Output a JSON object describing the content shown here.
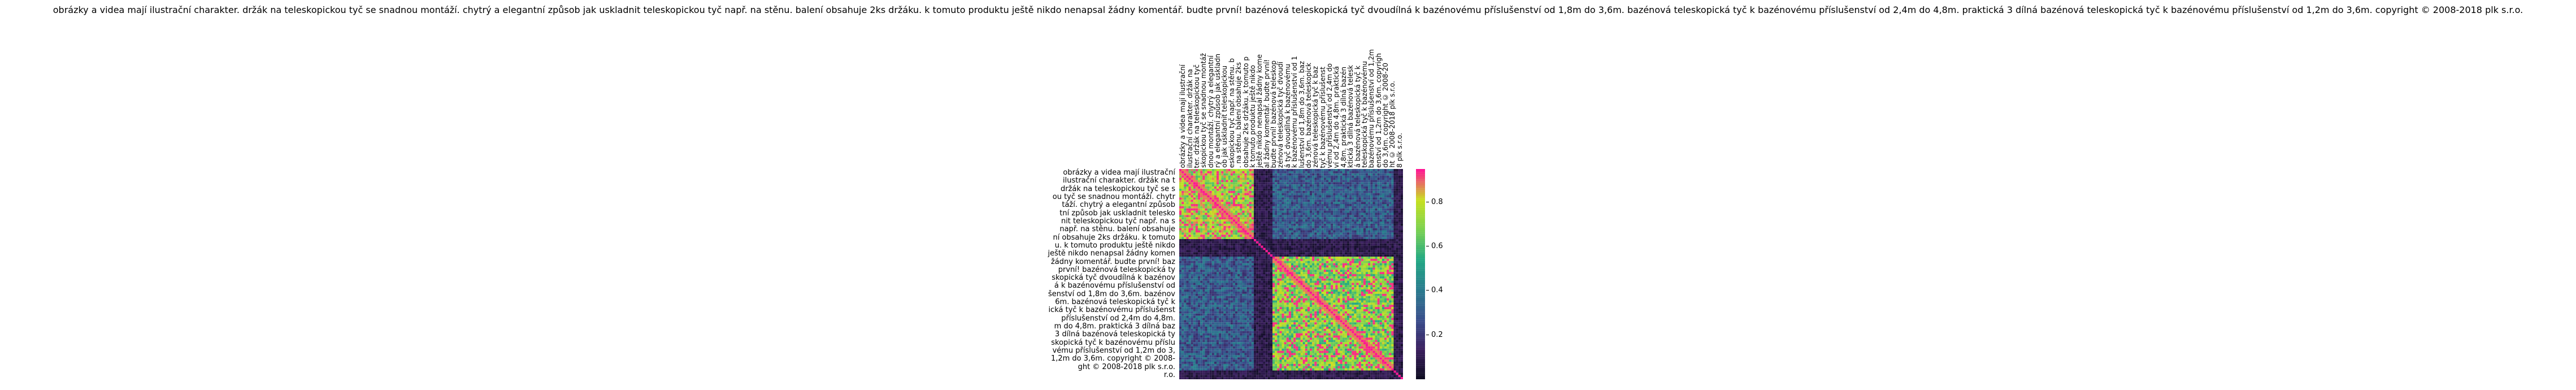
{
  "chart_data": {
    "type": "heatmap",
    "title": "obrázky a videa mají ilustrační charakter. držák na teleskopickou tyč se snadnou montáží. chytrý a elegantní způsob jak uskladnit teleskopickou tyč např. na stěnu. balení obsahuje 2ks držáku. k tomuto produktu ještě nikdo nenapsal žádny komentář. budte první! bazénová teleskopická tyč dvoudílná k bazénovému příslušenství od 1,8m do 3,6m. bazénová teleskopická tyč k bazénovému příslušenství od 2,4m do 4,8m. praktická 3 dílná bazénová teleskopická tyč k bazénovému příslušenství od 1,2m do 3,6m. copyright © 2008-2018 plk s.r.o.",
    "row_labels": [
      "obrázky a videa mají ilustrační",
      "ilustrační charakter. držák na t",
      "držák na teleskopickou tyč se s",
      "ou tyč se snadnou montáží. chytr",
      "táží. chytrý a elegantní způsob",
      "tní způsob jak uskladnit telesko",
      "nit teleskopickou tyč např. na s",
      "např. na stěnu. balení obsahuje",
      "ní obsahuje 2ks držáku. k tomuto",
      "u. k tomuto produktu ještě nikdo",
      "ještě nikdo nenapsal žádny komen",
      "žádny komentář. budte první! baz",
      "první! bazénová teleskopická ty",
      "skopická tyč dvoudílná k bazénov",
      "á k bazénovému příslušenství od",
      "šenství od 1,8m do 3,6m. bazénov",
      "6m. bazénová teleskopická tyč k",
      "ická tyč k bazénovému příslušenst",
      "příslušenství od 2,4m do 4,8m.",
      "m do 4,8m. praktická 3 dílná baz",
      "3 dílná bazénová teleskopická ty",
      "skopická tyč k bazénovému příslu",
      "vému příslušenství od 1,2m do 3,",
      "1,2m do 3,6m. copyright © 2008-",
      "ght © 2008-2018 plk s.r.o.",
      "r.o."
    ],
    "col_labels": [
      "obrázky a videa mají ilustrační",
      "ilustrační charakter. držák na",
      "ter. držák na teleskopickou tyč",
      "skopickou tyč se snadnou montáž",
      "dnou montáží. chytrý a elegantní",
      "rý a elegantní způsob jak uskladn",
      "ob jak uskladnit teleskopickou",
      "eskopickou tyč např. na stěnu. b",
      ". na stěnu. balení obsahuje 2ks",
      "obsahuje 2ks držáku. k tomuto p",
      "k tomuto produktu ještě nikdo",
      "ještě nikdo nenapsal žádny kome",
      "al žádny komentář. budte první!",
      "budte první! bazénová teleskop",
      "zénová teleskopická tyč dvoudí",
      "á tyč dvoudílná k bazénovému",
      "k bazénovému příslušenství od 1",
      "lušenství od 1,8m do 3,6m. baz",
      "do 3,6m. bazénová teleskopick",
      "zénová teleskopická tyč k baz",
      "tyč k bazénovému příslušenst",
      "vému příslušenství od 2,4m do",
      "ví od 2,4m do 4,8m. praktická",
      "4,8m. praktická 3 dílná bazén",
      "ktická 3 dílná bazénová telesk",
      "á bazénová teleskopická tyč k",
      "teleskopická tyč k bazénovému",
      "bazénovému příslušenství od 1,2m",
      "enství od 1,2m do 3,6m. copyrigh",
      "do 3,6m. copyright © 2008-20",
      "ht © 2008-2018 plk s.r.o.",
      "8 plk s.r.o."
    ],
    "value_range": [
      0,
      0.95
    ],
    "colorbar_ticks": [
      "0.2",
      "0.4",
      "0.6",
      "0.8"
    ],
    "colorbar_tick_values": [
      0.2,
      0.4,
      0.6,
      0.8
    ],
    "colormap": [
      "#0b0b1e",
      "#3b1f5e",
      "#3a4e8c",
      "#2a7b8e",
      "#22a884",
      "#7ad151",
      "#c8e020",
      "#ff1493"
    ],
    "grid": 96,
    "blocks": [
      {
        "from": 0,
        "to": 32,
        "level": 0.78
      },
      {
        "from": 32,
        "to": 40,
        "level": 0.05
      },
      {
        "from": 40,
        "to": 96,
        "level": 0.72
      }
    ],
    "cross_block_level": 0.3,
    "dark_bands": [
      32,
      33,
      34,
      35,
      36,
      37,
      38,
      39,
      92,
      93,
      94,
      95
    ]
  }
}
